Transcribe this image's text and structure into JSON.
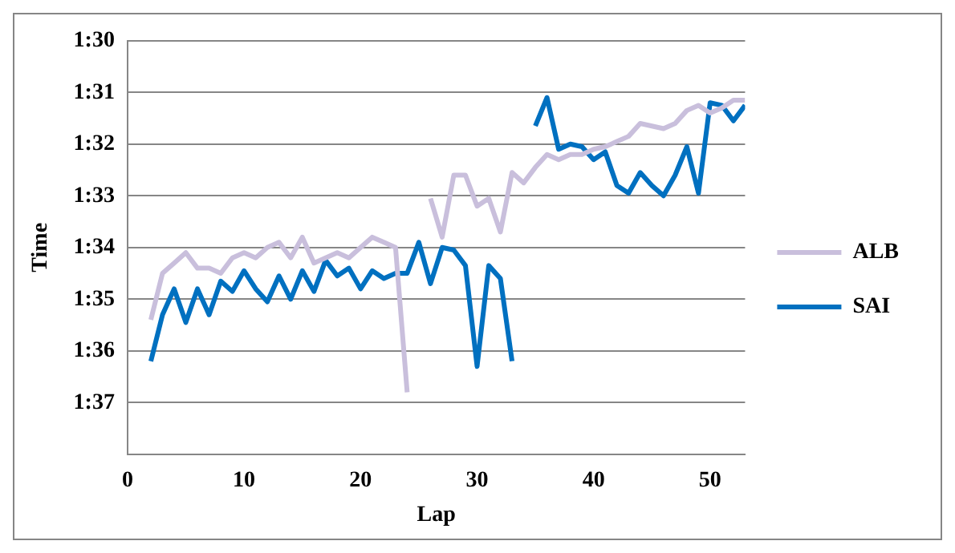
{
  "chart_data": {
    "type": "line",
    "xlabel": "Lap",
    "ylabel": "Time",
    "x": [
      2,
      3,
      4,
      5,
      6,
      7,
      8,
      9,
      10,
      11,
      12,
      13,
      14,
      15,
      16,
      17,
      18,
      19,
      20,
      21,
      22,
      23,
      24,
      25,
      26,
      27,
      28,
      29,
      30,
      31,
      32,
      33,
      34,
      35,
      36,
      37,
      38,
      39,
      40,
      41,
      42,
      43,
      44,
      45,
      46,
      47,
      48,
      49,
      50,
      51,
      52,
      53
    ],
    "series": [
      {
        "name": "ALB",
        "color": "#c9bfdc",
        "values": [
          95.4,
          94.5,
          94.3,
          94.1,
          94.4,
          94.4,
          94.5,
          94.2,
          94.1,
          94.2,
          94.0,
          93.9,
          94.2,
          93.8,
          94.3,
          94.2,
          94.1,
          94.2,
          94.0,
          93.8,
          93.9,
          94.0,
          96.8,
          null,
          93.05,
          93.8,
          92.6,
          92.6,
          93.2,
          93.05,
          93.7,
          92.55,
          92.75,
          92.45,
          92.2,
          92.3,
          92.2,
          92.2,
          92.1,
          92.05,
          91.95,
          91.85,
          91.6,
          91.65,
          91.7,
          91.6,
          91.35,
          91.25,
          91.4,
          91.3,
          91.15,
          91.15
        ]
      },
      {
        "name": "SAI",
        "color": "#0070c0",
        "values": [
          96.2,
          95.3,
          94.8,
          95.45,
          94.8,
          95.3,
          94.65,
          94.85,
          94.45,
          94.8,
          95.05,
          94.55,
          95.0,
          94.45,
          94.85,
          94.25,
          94.55,
          94.4,
          94.8,
          94.45,
          94.6,
          94.5,
          94.5,
          93.9,
          94.7,
          94.0,
          94.05,
          94.35,
          96.3,
          94.35,
          94.6,
          96.2,
          null,
          91.65,
          91.1,
          92.1,
          92.0,
          92.05,
          92.3,
          92.15,
          92.8,
          92.95,
          92.55,
          92.8,
          93.0,
          92.6,
          92.05,
          92.95,
          91.2,
          91.25,
          91.55,
          91.25
        ]
      }
    ],
    "xlim": [
      0,
      53
    ],
    "xticks": [
      0,
      10,
      20,
      30,
      40,
      50
    ],
    "ylim": [
      98,
      90
    ],
    "yticks": [
      {
        "value": 90,
        "label": "1:30"
      },
      {
        "value": 91,
        "label": "1:31"
      },
      {
        "value": 92,
        "label": "1:32"
      },
      {
        "value": 93,
        "label": "1:33"
      },
      {
        "value": 94,
        "label": "1:34"
      },
      {
        "value": 95,
        "label": "1:35"
      },
      {
        "value": 96,
        "label": "1:36"
      },
      {
        "value": 97,
        "label": "1:37"
      }
    ],
    "grid": "y",
    "legend": "right",
    "marker": "none",
    "line_style": "solid"
  }
}
